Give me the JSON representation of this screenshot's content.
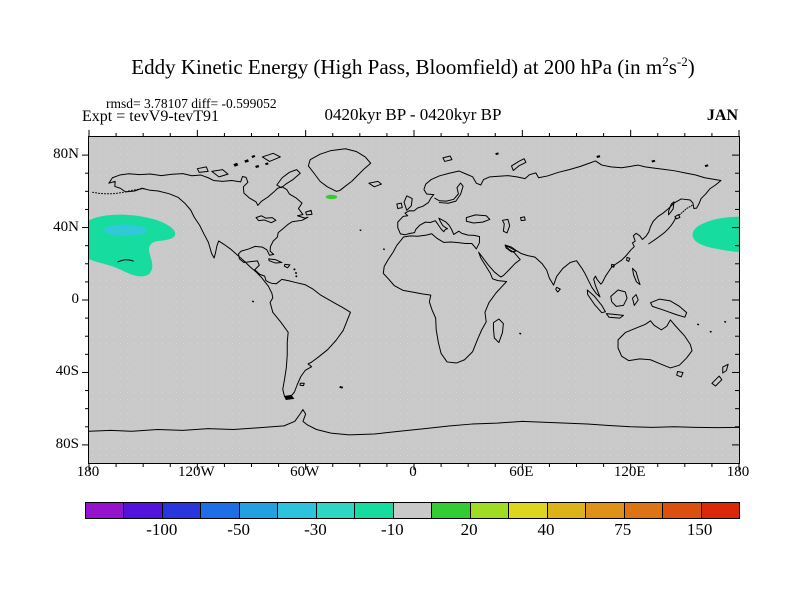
{
  "header": {
    "title": {
      "prefix": "Eddy Kinetic Energy (High Pass, Bloomfield) at 200 hPa (in m",
      "sup1": "2",
      "mid": "s",
      "sup2": "-2",
      "suffix": ")"
    },
    "stats": "rmsd= 3.78107 diff= -0.599052",
    "experiment": "Expt = tevV9-tevT91",
    "period": "0420kyr BP - 0420kyr BP",
    "month": "JAN"
  },
  "axes": {
    "lat": [
      "80N",
      "40N",
      "0",
      "40S",
      "80S"
    ],
    "lon": [
      "180",
      "120W",
      "60W",
      "0",
      "60E",
      "120E",
      "180"
    ]
  },
  "colorbar": {
    "labels": [
      "-100",
      "-50",
      "-30",
      "-10",
      "20",
      "40",
      "75",
      "150"
    ],
    "levels": [
      -150,
      -100,
      -75,
      -50,
      -40,
      -30,
      -20,
      -10,
      10,
      20,
      30,
      40,
      50,
      75,
      100,
      150
    ],
    "colors": [
      "#9613CE",
      "#5213DC",
      "#2836DC",
      "#1E6EE6",
      "#23A0E1",
      "#2DC3DC",
      "#2DD7C3",
      "#17DCA0",
      "#C9C9C9",
      "#32CD32",
      "#A0DC23",
      "#DCD71E",
      "#DCB419",
      "#E09119",
      "#DC7314",
      "#DC500F",
      "#DC280A"
    ]
  },
  "map": {
    "background": "#C9C9C9",
    "coastline_color": "#000000",
    "anomaly_colors": {
      "ne_pacific_outer": "#17DCA0",
      "ne_pacific_core": "#2FC9D7",
      "nw_pacific": "#17DCA0",
      "n_atlantic": "#32CD32"
    }
  },
  "chart_data": {
    "type": "heatmap",
    "title": "Eddy Kinetic Energy (High Pass, Bloomfield) at 200 hPa (in m2 s-2)",
    "stats": {
      "rmsd": 3.78107,
      "diff": -0.599052
    },
    "experiment": "tevV9-tevT91",
    "period": "0420kyr BP - 0420kyr BP",
    "month": "JAN",
    "projection": "equirectangular world map, 180W-180E, 90N-90S",
    "x_ticks": [
      "180",
      "120W",
      "60W",
      "0",
      "60E",
      "120E",
      "180"
    ],
    "y_ticks": [
      "80N",
      "40N",
      "0",
      "40S",
      "80S"
    ],
    "legend_position": "bottom colorbar",
    "contour_levels": [
      -150,
      -100,
      -75,
      -50,
      -40,
      -30,
      -20,
      -10,
      10,
      20,
      30,
      40,
      50,
      75,
      100,
      150
    ],
    "colorbar_tick_labels": [
      -100,
      -50,
      -30,
      -10,
      20,
      40,
      75,
      150
    ],
    "anomalies": [
      {
        "region": "Northeast Pacific (off North American west coast)",
        "lon_range": [
          -180,
          -132
        ],
        "lat_range": [
          24,
          48
        ],
        "value_range": [
          -20,
          -10
        ]
      },
      {
        "region": "Northeast Pacific core",
        "lon_range": [
          -172,
          -148
        ],
        "lat_range": [
          38,
          44
        ],
        "value_range": [
          -30,
          -20
        ]
      },
      {
        "region": "Northwest Pacific (east of Japan)",
        "lon_range": [
          153,
          180
        ],
        "lat_range": [
          28,
          42
        ],
        "value_range": [
          -20,
          -10
        ]
      },
      {
        "region": "North Atlantic (south of Greenland)",
        "lon_range": [
          -49,
          -43
        ],
        "lat_range": [
          57,
          59
        ],
        "value_range": [
          10,
          20
        ]
      }
    ],
    "background_value_range": [
      -10,
      10
    ]
  }
}
